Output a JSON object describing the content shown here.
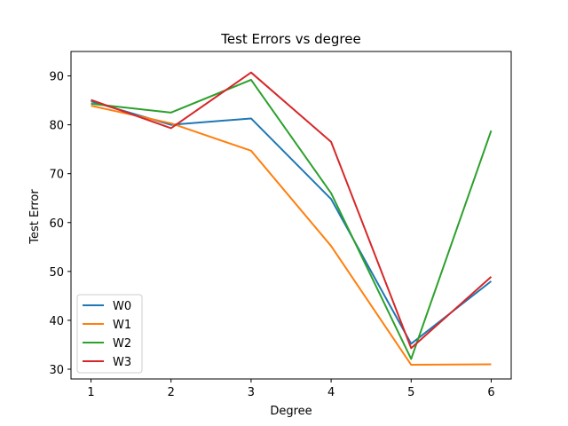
{
  "chart_data": {
    "type": "line",
    "title": "Test Errors vs degree",
    "xlabel": "Degree",
    "ylabel": "Test Error",
    "x": [
      1,
      2,
      3,
      4,
      5,
      6
    ],
    "xlim": [
      0.75,
      6.25
    ],
    "ylim": [
      28,
      95
    ],
    "xticks": [
      1,
      2,
      3,
      4,
      5,
      6
    ],
    "yticks": [
      30,
      40,
      50,
      60,
      70,
      80,
      90
    ],
    "grid": false,
    "legend_position": "lower-left",
    "series": [
      {
        "name": "W0",
        "color": "#1f77b4",
        "values": [
          84.8,
          80.0,
          81.3,
          64.8,
          35.2,
          48.0
        ]
      },
      {
        "name": "W1",
        "color": "#ff7f0e",
        "values": [
          83.9,
          80.3,
          74.7,
          55.2,
          30.9,
          31.0
        ]
      },
      {
        "name": "W2",
        "color": "#2ca02c",
        "values": [
          84.3,
          82.5,
          89.2,
          66.0,
          32.1,
          78.8
        ]
      },
      {
        "name": "W3",
        "color": "#d62728",
        "values": [
          85.1,
          79.3,
          90.7,
          76.5,
          34.3,
          48.9
        ]
      }
    ]
  }
}
